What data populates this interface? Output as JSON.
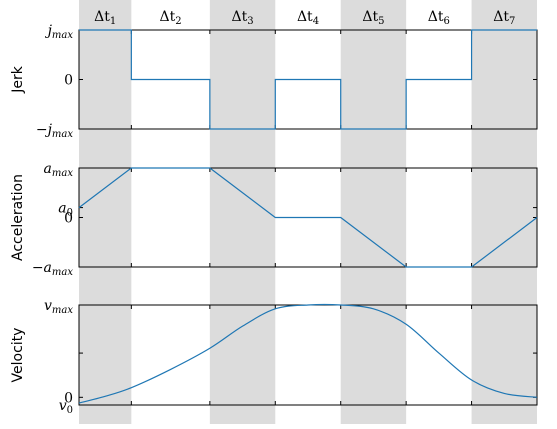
{
  "chart_data": [
    {
      "type": "line",
      "title": "",
      "ylabel": "Jerk",
      "yticks": [
        "j_max",
        "0",
        "−j_max"
      ],
      "ytick_labels": [
        {
          "base": "j",
          "sub": "max",
          "prefix": ""
        },
        {
          "base": "0",
          "sub": "",
          "prefix": ""
        },
        {
          "base": "j",
          "sub": "max",
          "prefix": "−"
        }
      ],
      "ylim": [
        -1,
        1
      ],
      "x": [
        0,
        0.8,
        0.8,
        2.0,
        2.0,
        3.0,
        3.0,
        4.0,
        4.0,
        5.0,
        5.0,
        6.0,
        6.0,
        7.0
      ],
      "values": [
        1,
        1,
        0,
        0,
        -1,
        -1,
        0,
        0,
        -1,
        -1,
        0,
        0,
        1,
        1
      ]
    },
    {
      "type": "line",
      "title": "",
      "ylabel": "Acceleration",
      "ytick_labels": [
        {
          "base": "a",
          "sub": "max",
          "prefix": "",
          "y": 1
        },
        {
          "base": "a",
          "sub": "0",
          "prefix": "",
          "y": 0.2
        },
        {
          "base": "0",
          "sub": "",
          "prefix": "",
          "y": 0
        },
        {
          "base": "a",
          "sub": "max",
          "prefix": "−",
          "y": -1
        }
      ],
      "ylim": [
        -1,
        1
      ],
      "x": [
        0,
        0.8,
        2.0,
        3.0,
        4.0,
        5.0,
        6.0,
        7.0
      ],
      "values": [
        0.2,
        1,
        1,
        0,
        0,
        -1,
        -1,
        0
      ]
    },
    {
      "type": "line",
      "title": "",
      "ylabel": "Velocity",
      "ytick_labels": [
        {
          "base": "v",
          "sub": "max",
          "prefix": "",
          "y": 1
        },
        {
          "base": "0",
          "sub": "",
          "prefix": "",
          "y": 0.04
        },
        {
          "base": "v",
          "sub": "0",
          "prefix": "",
          "y": -0.04
        }
      ],
      "ylim": [
        -0.04,
        1
      ],
      "x": [
        0,
        0.4,
        0.8,
        1.4,
        2.0,
        2.5,
        3.0,
        3.5,
        4.0,
        4.5,
        5.0,
        5.5,
        6.0,
        6.5,
        7.0
      ],
      "values": [
        -0.02,
        0.05,
        0.14,
        0.33,
        0.55,
        0.78,
        0.96,
        1.0,
        1.0,
        0.96,
        0.8,
        0.5,
        0.22,
        0.08,
        0.04
      ]
    }
  ],
  "intervals": {
    "labels": [
      "Δt1",
      "Δt2",
      "Δt3",
      "Δt4",
      "Δt5",
      "Δt6",
      "Δt7"
    ],
    "symbol": "Δt",
    "subscripts": [
      "1",
      "2",
      "3",
      "4",
      "5",
      "6",
      "7"
    ],
    "boundaries": [
      0,
      0.8,
      2.0,
      3.0,
      4.0,
      5.0,
      6.0,
      7.0
    ],
    "shaded": [
      true,
      false,
      true,
      false,
      true,
      false,
      true
    ]
  },
  "colors": {
    "line": "#1f77b4",
    "shade": "#dcdcdc",
    "axis": "#000000"
  }
}
